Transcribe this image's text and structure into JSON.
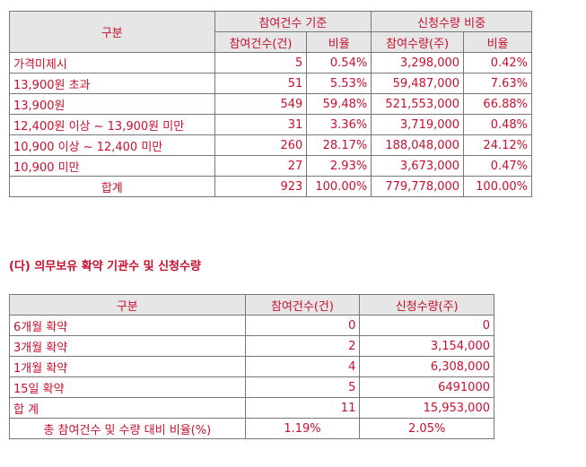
{
  "table1": {
    "h_group": "구분",
    "h_participation": "참여건수 기준",
    "h_subscription": "신청수량 비중",
    "h_count": "참여건수(건)",
    "h_ratio1": "비율",
    "h_qty": "참여수량(주)",
    "h_ratio2": "비율",
    "rows": [
      {
        "label": "가격미제시",
        "count": "5",
        "ratio1": "0.54%",
        "qty": "3,298,000",
        "ratio2": "0.42%"
      },
      {
        "label": "13,900원 초과",
        "count": "51",
        "ratio1": "5.53%",
        "qty": "59,487,000",
        "ratio2": "7.63%"
      },
      {
        "label": "13,900원",
        "count": "549",
        "ratio1": "59.48%",
        "qty": "521,553,000",
        "ratio2": "66.88%"
      },
      {
        "label": "12,400원 이상 ~ 13,900원 미만",
        "count": "31",
        "ratio1": "3.36%",
        "qty": "3,719,000",
        "ratio2": "0.48%"
      },
      {
        "label": "10,900 이상 ~ 12,400 미만",
        "count": "260",
        "ratio1": "28.17%",
        "qty": "188,048,000",
        "ratio2": "24.12%"
      },
      {
        "label": "10,900 미만",
        "count": "27",
        "ratio1": "2.93%",
        "qty": "3,673,000",
        "ratio2": "0.47%"
      },
      {
        "label": "합계",
        "count": "923",
        "ratio1": "100.00%",
        "qty": "779,778,000",
        "ratio2": "100.00%"
      }
    ]
  },
  "section_title": "(다) 의무보유 확약 기관수 및 신청수량",
  "table2": {
    "h_group": "구분",
    "h_count": "참여건수(건)",
    "h_qty": "신청수량(주)",
    "rows": [
      {
        "label": "6개월 확약",
        "count": "0",
        "qty": "0"
      },
      {
        "label": "3개월 확약",
        "count": "2",
        "qty": "3,154,000"
      },
      {
        "label": "1개월 확약",
        "count": "4",
        "qty": "6,308,000"
      },
      {
        "label": "15일 확약",
        "count": "5",
        "qty": "6491000"
      },
      {
        "label": "합 계",
        "count": "11",
        "qty": "15,953,000"
      }
    ],
    "footer": {
      "label": "총 참여건수 및 수량 대비 비율(%)",
      "count": "1.19%",
      "qty": "2.05%"
    }
  }
}
